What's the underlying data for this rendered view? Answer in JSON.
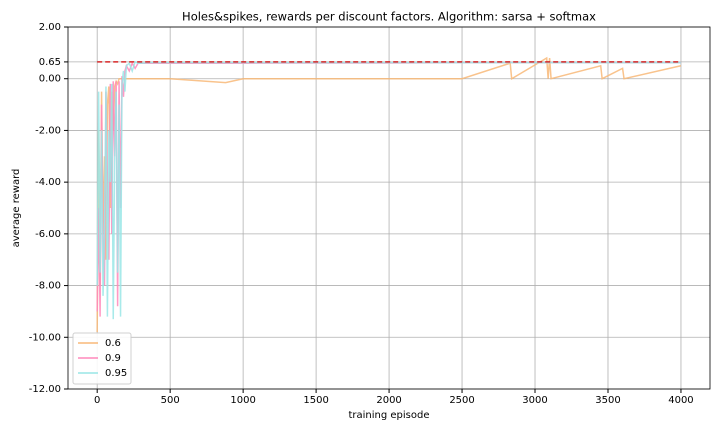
{
  "chart_data": {
    "type": "line",
    "title": "Holes&spikes, rewards per discount factors. Algorithm: sarsa + softmax",
    "xlabel": "training episode",
    "ylabel": "average reward",
    "x": [
      0,
      10,
      20,
      30,
      40,
      50,
      60,
      70,
      80,
      90,
      100,
      110,
      120,
      130,
      140,
      150,
      160,
      170,
      180,
      190,
      200,
      220,
      240,
      260,
      280,
      300,
      350,
      500,
      880,
      1000,
      1500,
      2000,
      2500,
      2830,
      2840,
      3080,
      3090,
      3100,
      3110,
      3450,
      3460,
      3600,
      3610,
      3999
    ],
    "series": [
      {
        "name": "0.6",
        "color": "#f8b878",
        "values": [
          -9.8,
          -2,
          -8,
          -0.5,
          -6,
          -3,
          -7,
          -1,
          -0.3,
          -5,
          -0.5,
          -2,
          -0.3,
          -0.1,
          -0.2,
          0,
          0,
          0,
          0,
          0,
          0,
          0,
          0,
          0,
          0,
          0,
          0,
          0,
          -0.15,
          0,
          0,
          0,
          0,
          0.6,
          0,
          0.8,
          0,
          0.8,
          0,
          0.5,
          0,
          0.4,
          0,
          0.5
        ]
      },
      {
        "name": "0.9",
        "color": "#ff88bb",
        "values": [
          -9,
          -5,
          -9.2,
          -1,
          -6,
          -8,
          -0.5,
          -4,
          -7,
          -0.2,
          -6,
          -0.1,
          -3,
          -0.1,
          -8.8,
          -0.1,
          -5,
          0.1,
          -0.7,
          0.3,
          0.5,
          0.3,
          0.6,
          0.4,
          0.6,
          0.6,
          0.6,
          0.6,
          0.6,
          0.6,
          0.61,
          0.61,
          0.62,
          0.62,
          0.62,
          0.62,
          0.62,
          0.62,
          0.62,
          0.62,
          0.62,
          0.62,
          0.62,
          0.62
        ]
      },
      {
        "name": "0.95",
        "color": "#99e6e6",
        "values": [
          -8,
          -0.5,
          -7.5,
          -2,
          -8.4,
          -6,
          -0.3,
          -9.2,
          -2,
          -4,
          -0.2,
          -9.3,
          -3,
          -0.5,
          -7.5,
          -1,
          -9.2,
          -0.2,
          0.3,
          -0.5,
          0.5,
          0.6,
          0.3,
          0.65,
          0.6,
          0.6,
          0.62,
          0.62,
          0.62,
          0.62,
          0.62,
          0.62,
          0.62,
          0.62,
          0.62,
          0.62,
          0.62,
          0.62,
          0.62,
          0.62,
          0.62,
          0.62,
          0.62,
          0.62
        ]
      }
    ],
    "hline": 0.65,
    "hline_color": "#d62728",
    "xlim": [
      -200,
      4199
    ],
    "ylim": [
      -12,
      2
    ],
    "xticks": [
      0,
      500,
      1000,
      1500,
      2000,
      2500,
      3000,
      3500,
      4000
    ],
    "yticks": [
      {
        "value": 2,
        "label": "2.00"
      },
      {
        "value": 0.65,
        "label": "0.65"
      },
      {
        "value": 0,
        "label": "0.00"
      },
      {
        "value": -2,
        "label": "-2.00"
      },
      {
        "value": -4,
        "label": "-4.00"
      },
      {
        "value": -6,
        "label": "-6.00"
      },
      {
        "value": -8,
        "label": "-8.00"
      },
      {
        "value": -10,
        "label": "-10.00"
      },
      {
        "value": -12,
        "label": "-12.00"
      }
    ],
    "grid": true,
    "legend": "lower left"
  }
}
